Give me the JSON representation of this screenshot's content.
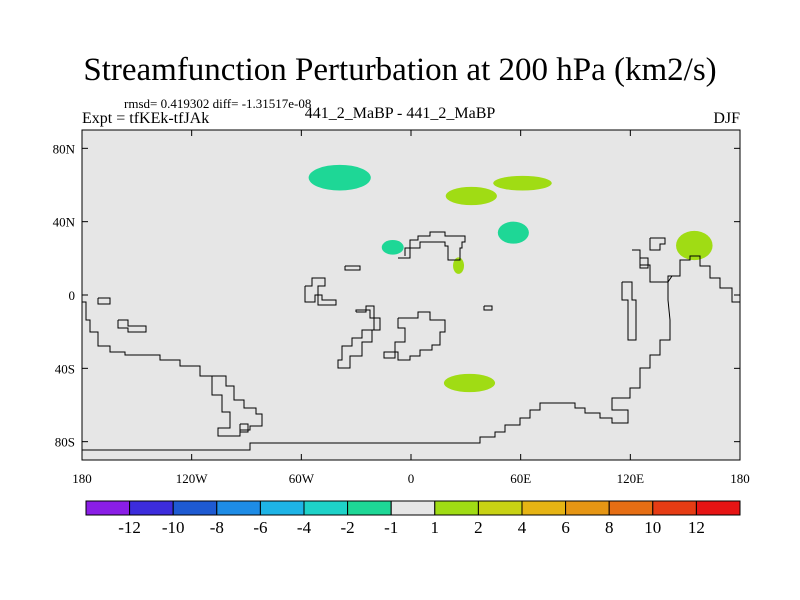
{
  "header": {
    "title": "Streamfunction Perturbation at 200 hPa (km2/s)",
    "stats": "rmsd= 0.419302 diff= -1.31517e-08",
    "left_label": "Expt = tfKEk-tfJAk",
    "center_label": "441_2_MaBP - 441_2_MaBP",
    "right_label": "DJF"
  },
  "chart_data": {
    "type": "heatmap",
    "title": "Streamfunction Perturbation at 200 hPa (km2/s)",
    "xlim": [
      -180,
      180
    ],
    "ylim": [
      -90,
      90
    ],
    "x_ticks": [
      {
        "value": -180,
        "label": "180"
      },
      {
        "value": -120,
        "label": "120W"
      },
      {
        "value": -60,
        "label": "60W"
      },
      {
        "value": 0,
        "label": "0"
      },
      {
        "value": 60,
        "label": "60E"
      },
      {
        "value": 120,
        "label": "120E"
      },
      {
        "value": 180,
        "label": "180"
      }
    ],
    "y_ticks": [
      {
        "value": 80,
        "label": "80N"
      },
      {
        "value": 40,
        "label": "40N"
      },
      {
        "value": 0,
        "label": "0"
      },
      {
        "value": -40,
        "label": "40S"
      },
      {
        "value": -80,
        "label": "80S"
      }
    ],
    "colorbar": {
      "colors": [
        "#8a1ee6",
        "#3c2cdc",
        "#1e5ad2",
        "#1e8ce6",
        "#1eb4e6",
        "#1ed2c8",
        "#1ed796",
        "#e6e6e6",
        "#a0dc14",
        "#c8d214",
        "#e6b414",
        "#e69614",
        "#e66e14",
        "#e63c14",
        "#e61414"
      ],
      "labels": [
        "-12",
        "-10",
        "-8",
        "-6",
        "-4",
        "-2",
        "-1",
        "1",
        "2",
        "4",
        "6",
        "8",
        "10",
        "12"
      ]
    },
    "anomalies": [
      {
        "lon": -39,
        "lat": 64,
        "rlon": 17,
        "rlat": 7,
        "color": "#1ed796",
        "value": "-1 to -2"
      },
      {
        "lon": 33,
        "lat": 54,
        "rlon": 14,
        "rlat": 5,
        "color": "#a0dc14",
        "value": "1 to 2"
      },
      {
        "lon": 61,
        "lat": 61,
        "rlon": 16,
        "rlat": 4,
        "color": "#a0dc14",
        "value": "1 to 2"
      },
      {
        "lon": 56,
        "lat": 34,
        "rlon": 8.5,
        "rlat": 6,
        "color": "#1ed796",
        "value": "-1 to -2"
      },
      {
        "lon": -10,
        "lat": 26,
        "rlon": 6,
        "rlat": 4,
        "color": "#1ed796",
        "value": "-1 to -2"
      },
      {
        "lon": 26,
        "lat": 16,
        "rlon": 3,
        "rlat": 4.5,
        "color": "#a0dc14",
        "value": "1 to 2"
      },
      {
        "lon": 155,
        "lat": 27,
        "rlon": 10,
        "rlat": 8,
        "color": "#a0dc14",
        "value": "1 to 2"
      },
      {
        "lon": 32,
        "lat": -48,
        "rlon": 14,
        "rlat": 5,
        "color": "#a0dc14",
        "value": "1 to 2"
      }
    ]
  }
}
